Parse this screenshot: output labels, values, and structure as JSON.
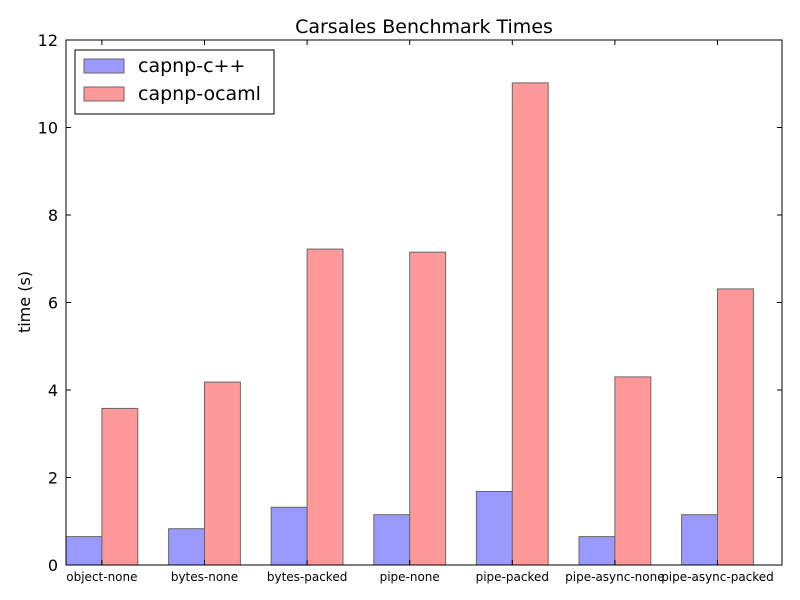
{
  "chart_data": {
    "type": "bar",
    "title": "Carsales Benchmark Times",
    "xlabel": "",
    "ylabel": "time (s)",
    "ylim": [
      0,
      12
    ],
    "yticks": [
      0,
      2,
      4,
      6,
      8,
      10,
      12
    ],
    "categories": [
      "object-none",
      "bytes-none",
      "bytes-packed",
      "pipe-none",
      "pipe-packed",
      "pipe-async-none",
      "pipe-async-packed"
    ],
    "series": [
      {
        "name": "capnp-c++",
        "color": "#9999ff",
        "values": [
          0.65,
          0.83,
          1.32,
          1.15,
          1.68,
          0.65,
          1.15
        ]
      },
      {
        "name": "capnp-ocaml",
        "color": "#ff9999",
        "values": [
          3.58,
          4.18,
          7.22,
          7.15,
          11.02,
          4.3,
          6.31
        ]
      }
    ],
    "legend_position": "top-left",
    "grid": false
  }
}
